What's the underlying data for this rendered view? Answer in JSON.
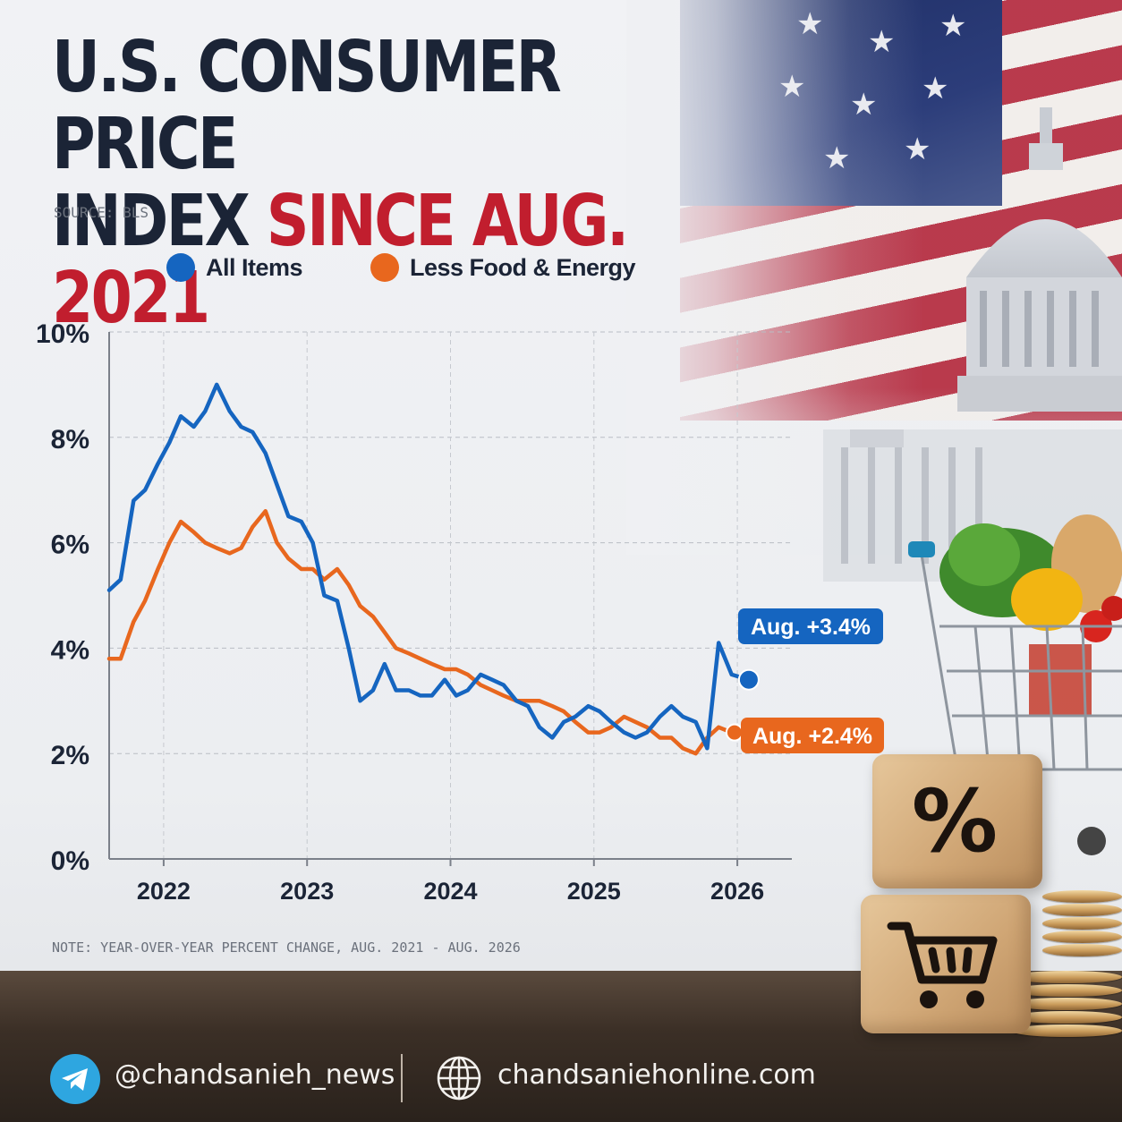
{
  "header": {
    "title_line1": "U.S. CONSUMER PRICE",
    "title_line2_plain": "INDEX ",
    "title_line2_accent": "SINCE AUG. 2021",
    "source": "SOURCE:  BLS"
  },
  "colors": {
    "all_items": "#1565c0",
    "less_food_energy": "#e8671e",
    "title": "#1b2436",
    "accent": "#c11e2e"
  },
  "chart_data": {
    "type": "line",
    "x_ticks": [
      2022,
      2023,
      2024,
      2025,
      2026
    ],
    "y_ticks": [
      "0%",
      "2%",
      "4%",
      "6%",
      "8%",
      "10%"
    ],
    "ylim": [
      0,
      10
    ],
    "xlim": [
      2021.62,
      2026.38
    ],
    "grid": true,
    "legend_position": "top",
    "series": [
      {
        "name": "All Items",
        "x": [
          2021.62,
          2021.7,
          2021.79,
          2021.87,
          2021.96,
          2022.04,
          2022.12,
          2022.21,
          2022.29,
          2022.37,
          2022.46,
          2022.54,
          2022.62,
          2022.71,
          2022.79,
          2022.87,
          2022.96,
          2023.04,
          2023.12,
          2023.21,
          2023.29,
          2023.37,
          2023.46,
          2023.54,
          2023.62,
          2023.71,
          2023.79,
          2023.87,
          2023.96,
          2024.04,
          2024.12,
          2024.21,
          2024.29,
          2024.37,
          2024.46,
          2024.54,
          2024.62,
          2024.71,
          2024.79,
          2024.87,
          2024.96,
          2025.04,
          2025.12,
          2025.21,
          2025.29,
          2025.37,
          2025.46,
          2025.54,
          2025.62,
          2025.71,
          2025.79,
          2025.87,
          2025.96
        ],
        "values": [
          5.1,
          5.3,
          6.8,
          7.0,
          7.5,
          7.9,
          8.4,
          8.2,
          8.5,
          9.0,
          8.5,
          8.2,
          8.1,
          7.7,
          7.1,
          6.5,
          6.4,
          6.0,
          5.0,
          4.9,
          4.0,
          3.0,
          3.2,
          3.7,
          3.2,
          3.2,
          3.1,
          3.1,
          3.4,
          3.1,
          3.2,
          3.5,
          3.4,
          3.3,
          3.0,
          2.9,
          2.5,
          2.3,
          2.6,
          2.7,
          2.9,
          2.8,
          2.6,
          2.4,
          2.3,
          2.4,
          2.7,
          2.9,
          2.7,
          2.6,
          2.1,
          4.1,
          3.5
        ],
        "end_x": 2026.08,
        "end_value": 3.4,
        "end_label": "Aug. +3.4%"
      },
      {
        "name": "Less Food & Energy",
        "x": [
          2021.62,
          2021.7,
          2021.79,
          2021.87,
          2021.96,
          2022.04,
          2022.12,
          2022.21,
          2022.29,
          2022.37,
          2022.46,
          2022.54,
          2022.62,
          2022.71,
          2022.79,
          2022.87,
          2022.96,
          2023.04,
          2023.12,
          2023.21,
          2023.29,
          2023.37,
          2023.46,
          2023.54,
          2023.62,
          2023.71,
          2023.79,
          2023.87,
          2023.96,
          2024.04,
          2024.12,
          2024.21,
          2024.29,
          2024.37,
          2024.46,
          2024.54,
          2024.62,
          2024.71,
          2024.79,
          2024.87,
          2024.96,
          2025.04,
          2025.12,
          2025.21,
          2025.29,
          2025.37,
          2025.46,
          2025.54,
          2025.62,
          2025.71,
          2025.79,
          2025.87,
          2025.96
        ],
        "values": [
          3.8,
          3.8,
          4.5,
          4.9,
          5.5,
          6.0,
          6.4,
          6.2,
          6.0,
          5.9,
          5.8,
          5.9,
          6.3,
          6.6,
          6.0,
          5.7,
          5.5,
          5.5,
          5.3,
          5.5,
          5.2,
          4.8,
          4.6,
          4.3,
          4.0,
          3.9,
          3.8,
          3.7,
          3.6,
          3.6,
          3.5,
          3.3,
          3.2,
          3.1,
          3.0,
          3.0,
          3.0,
          2.9,
          2.8,
          2.6,
          2.4,
          2.4,
          2.5,
          2.7,
          2.6,
          2.5,
          2.3,
          2.3,
          2.1,
          2.0,
          2.3,
          2.5,
          2.4
        ],
        "end_x": 2025.98,
        "end_value": 2.4,
        "end_label": "Aug. +2.4%"
      }
    ]
  },
  "note": "NOTE:  YEAR-OVER-YEAR PERCENT CHANGE, AUG. 2021 - AUG. 2026",
  "footer": {
    "telegram_handle": "@chandsanieh_news",
    "website": "chandsaniehonline.com"
  },
  "decor": {
    "cube_symbol": "%"
  }
}
